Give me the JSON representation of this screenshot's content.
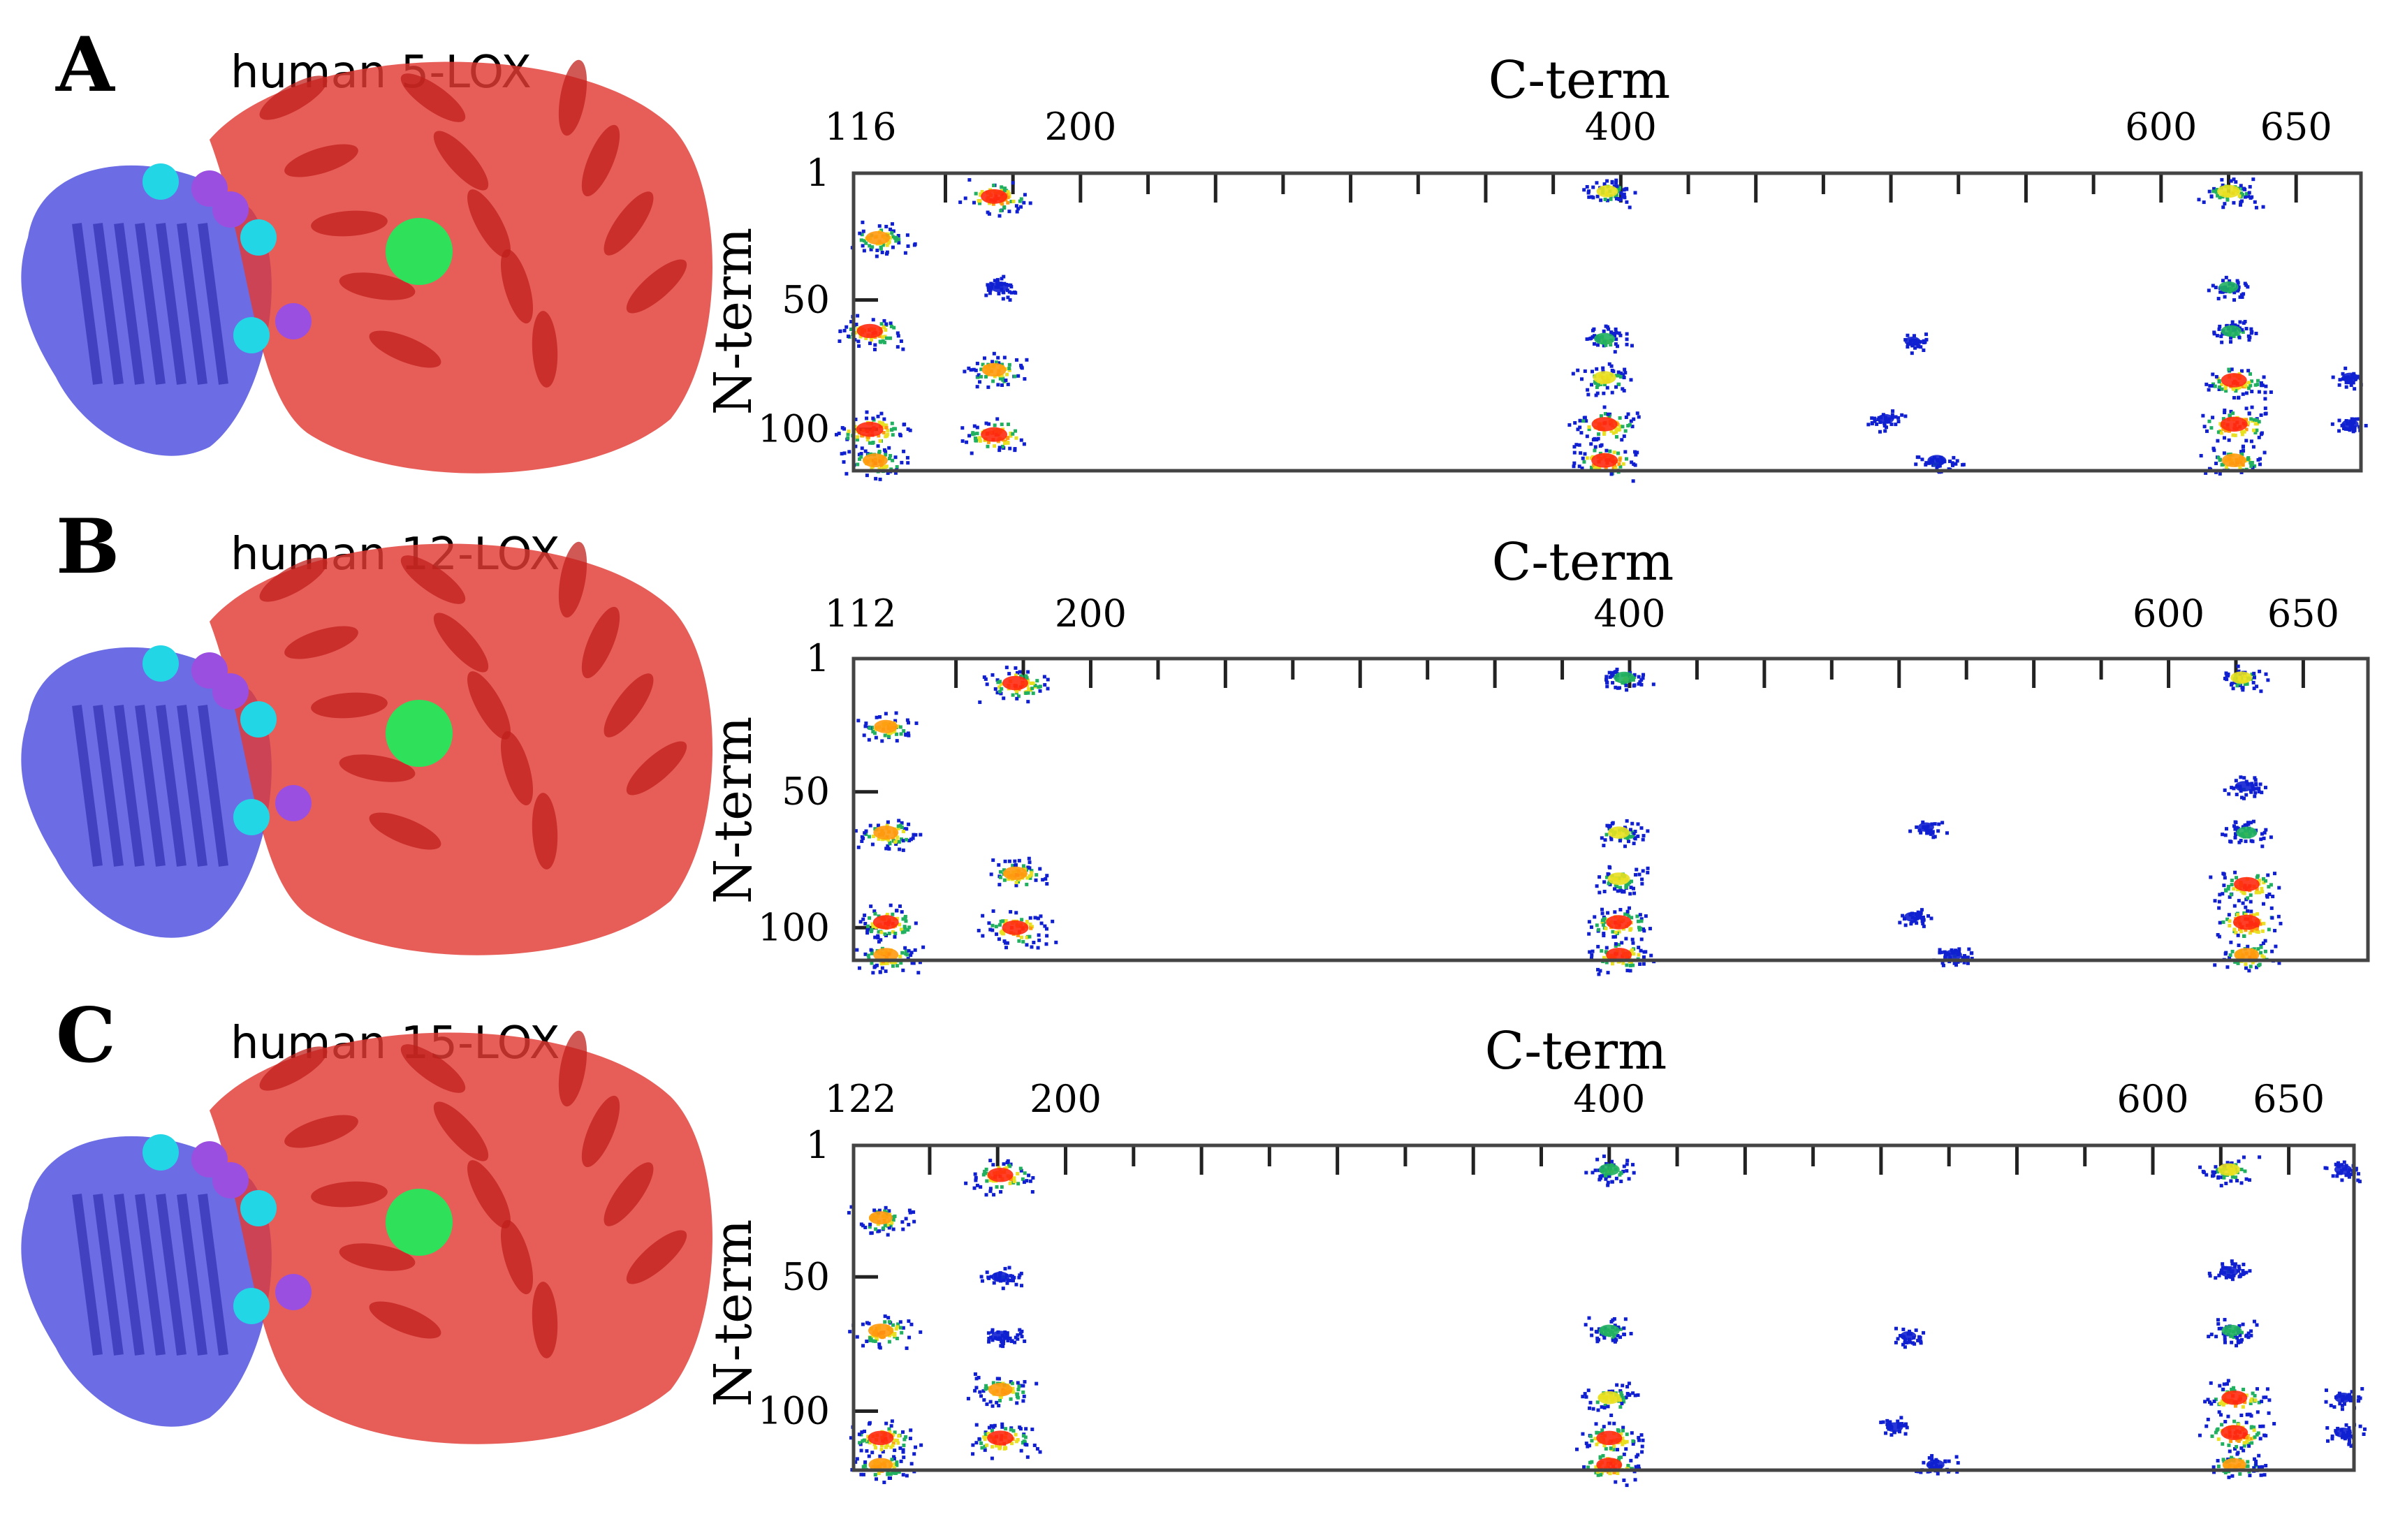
{
  "chart_data": [
    {
      "type": "heatmap",
      "panel": "A",
      "structure_label": "human 5-LOX",
      "xlabel": "C-term",
      "ylabel": "N-term",
      "xlim": [
        116,
        674
      ],
      "ylim": [
        1,
        116
      ],
      "x_tick_labels": [
        {
          "value": 116,
          "label": "116"
        },
        {
          "value": 200,
          "label": "200"
        },
        {
          "value": 400,
          "label": "400"
        },
        {
          "value": 600,
          "label": "600"
        },
        {
          "value": 650,
          "label": "650"
        }
      ],
      "y_tick_labels": [
        {
          "value": 1,
          "label": "1"
        },
        {
          "value": 50,
          "label": "50"
        },
        {
          "value": 100,
          "label": "100"
        }
      ],
      "x_minor_ticks": [
        150,
        175,
        200,
        225,
        250,
        275,
        300,
        325,
        350,
        375,
        400,
        425,
        450,
        475,
        500,
        525,
        550,
        575,
        600,
        625,
        650
      ],
      "clusters": [
        {
          "x": 125,
          "y": 26,
          "v": 0.75
        },
        {
          "x": 168,
          "y": 10,
          "v": 0.9
        },
        {
          "x": 170,
          "y": 45,
          "v": 0.3
        },
        {
          "x": 122,
          "y": 62,
          "v": 0.85
        },
        {
          "x": 168,
          "y": 77,
          "v": 0.75
        },
        {
          "x": 122,
          "y": 100,
          "v": 0.95
        },
        {
          "x": 168,
          "y": 102,
          "v": 0.9
        },
        {
          "x": 124,
          "y": 112,
          "v": 0.8
        },
        {
          "x": 395,
          "y": 8,
          "v": 0.55
        },
        {
          "x": 394,
          "y": 65,
          "v": 0.5
        },
        {
          "x": 394,
          "y": 80,
          "v": 0.65
        },
        {
          "x": 394,
          "y": 98,
          "v": 0.85
        },
        {
          "x": 394,
          "y": 112,
          "v": 0.9
        },
        {
          "x": 517,
          "y": 112,
          "v": 0.35
        },
        {
          "x": 625,
          "y": 8,
          "v": 0.65
        },
        {
          "x": 625,
          "y": 45,
          "v": 0.4
        },
        {
          "x": 626,
          "y": 62,
          "v": 0.45
        },
        {
          "x": 627,
          "y": 81,
          "v": 0.85
        },
        {
          "x": 627,
          "y": 98,
          "v": 0.95
        },
        {
          "x": 627,
          "y": 112,
          "v": 0.75
        },
        {
          "x": 670,
          "y": 80,
          "v": 0.2
        },
        {
          "x": 670,
          "y": 98,
          "v": 0.2
        },
        {
          "x": 508,
          "y": 66,
          "v": 0.15
        },
        {
          "x": 498,
          "y": 96,
          "v": 0.2
        }
      ]
    },
    {
      "type": "heatmap",
      "panel": "B",
      "structure_label": "human 12-LOX",
      "xlabel": "C-term",
      "ylabel": "N-term",
      "xlim": [
        112,
        674
      ],
      "ylim": [
        1,
        112
      ],
      "x_tick_labels": [
        {
          "value": 112,
          "label": "112"
        },
        {
          "value": 200,
          "label": "200"
        },
        {
          "value": 400,
          "label": "400"
        },
        {
          "value": 600,
          "label": "600"
        },
        {
          "value": 650,
          "label": "650"
        }
      ],
      "y_tick_labels": [
        {
          "value": 1,
          "label": "1"
        },
        {
          "value": 50,
          "label": "50"
        },
        {
          "value": 100,
          "label": "100"
        }
      ],
      "x_minor_ticks": [
        150,
        175,
        200,
        225,
        250,
        275,
        300,
        325,
        350,
        375,
        400,
        425,
        450,
        475,
        500,
        525,
        550,
        575,
        600,
        625,
        650
      ],
      "clusters": [
        {
          "x": 124,
          "y": 26,
          "v": 0.7
        },
        {
          "x": 172,
          "y": 10,
          "v": 0.85
        },
        {
          "x": 124,
          "y": 65,
          "v": 0.8
        },
        {
          "x": 172,
          "y": 80,
          "v": 0.75
        },
        {
          "x": 124,
          "y": 98,
          "v": 0.85
        },
        {
          "x": 172,
          "y": 100,
          "v": 0.9
        },
        {
          "x": 124,
          "y": 110,
          "v": 0.8
        },
        {
          "x": 398,
          "y": 8,
          "v": 0.5
        },
        {
          "x": 396,
          "y": 65,
          "v": 0.55
        },
        {
          "x": 396,
          "y": 82,
          "v": 0.6
        },
        {
          "x": 396,
          "y": 98,
          "v": 0.85
        },
        {
          "x": 396,
          "y": 110,
          "v": 0.85
        },
        {
          "x": 627,
          "y": 8,
          "v": 0.55
        },
        {
          "x": 628,
          "y": 48,
          "v": 0.3
        },
        {
          "x": 629,
          "y": 65,
          "v": 0.5
        },
        {
          "x": 629,
          "y": 84,
          "v": 0.85
        },
        {
          "x": 629,
          "y": 98,
          "v": 0.95
        },
        {
          "x": 629,
          "y": 110,
          "v": 0.8
        },
        {
          "x": 520,
          "y": 110,
          "v": 0.3
        },
        {
          "x": 505,
          "y": 96,
          "v": 0.2
        },
        {
          "x": 510,
          "y": 63,
          "v": 0.15
        }
      ]
    },
    {
      "type": "heatmap",
      "panel": "C",
      "structure_label": "human 15-LOX",
      "xlabel": "C-term",
      "ylabel": "N-term",
      "xlim": [
        122,
        674
      ],
      "ylim": [
        1,
        122
      ],
      "x_tick_labels": [
        {
          "value": 122,
          "label": "122"
        },
        {
          "value": 200,
          "label": "200"
        },
        {
          "value": 400,
          "label": "400"
        },
        {
          "value": 600,
          "label": "600"
        },
        {
          "value": 650,
          "label": "650"
        }
      ],
      "y_tick_labels": [
        {
          "value": 1,
          "label": "1"
        },
        {
          "value": 50,
          "label": "50"
        },
        {
          "value": 100,
          "label": "100"
        }
      ],
      "x_minor_ticks": [
        150,
        175,
        200,
        225,
        250,
        275,
        300,
        325,
        350,
        375,
        400,
        425,
        450,
        475,
        500,
        525,
        550,
        575,
        600,
        625,
        650
      ],
      "clusters": [
        {
          "x": 132,
          "y": 28,
          "v": 0.7
        },
        {
          "x": 176,
          "y": 12,
          "v": 0.85
        },
        {
          "x": 176,
          "y": 50,
          "v": 0.3
        },
        {
          "x": 132,
          "y": 70,
          "v": 0.8
        },
        {
          "x": 176,
          "y": 72,
          "v": 0.3
        },
        {
          "x": 176,
          "y": 92,
          "v": 0.75
        },
        {
          "x": 132,
          "y": 110,
          "v": 0.85
        },
        {
          "x": 176,
          "y": 110,
          "v": 0.9
        },
        {
          "x": 132,
          "y": 120,
          "v": 0.75
        },
        {
          "x": 400,
          "y": 10,
          "v": 0.5
        },
        {
          "x": 400,
          "y": 70,
          "v": 0.5
        },
        {
          "x": 400,
          "y": 95,
          "v": 0.65
        },
        {
          "x": 400,
          "y": 110,
          "v": 0.85
        },
        {
          "x": 400,
          "y": 120,
          "v": 0.85
        },
        {
          "x": 628,
          "y": 10,
          "v": 0.6
        },
        {
          "x": 628,
          "y": 48,
          "v": 0.35
        },
        {
          "x": 629,
          "y": 70,
          "v": 0.45
        },
        {
          "x": 630,
          "y": 95,
          "v": 0.85
        },
        {
          "x": 630,
          "y": 108,
          "v": 0.95
        },
        {
          "x": 630,
          "y": 120,
          "v": 0.7
        },
        {
          "x": 670,
          "y": 10,
          "v": 0.25
        },
        {
          "x": 670,
          "y": 95,
          "v": 0.25
        },
        {
          "x": 670,
          "y": 108,
          "v": 0.25
        },
        {
          "x": 520,
          "y": 120,
          "v": 0.3
        },
        {
          "x": 510,
          "y": 72,
          "v": 0.15
        },
        {
          "x": 505,
          "y": 106,
          "v": 0.2
        }
      ]
    }
  ],
  "colors": {
    "n_domain": "#5252e0",
    "catalytic_domain": "#e23a35",
    "interface_a": "#22d6e6",
    "interface_b": "#9b4fe0",
    "ligand": "#2ee05a",
    "heat_low": "#1020d0",
    "heat_mid": "#20b060",
    "heat_high": "#ff2a10"
  }
}
